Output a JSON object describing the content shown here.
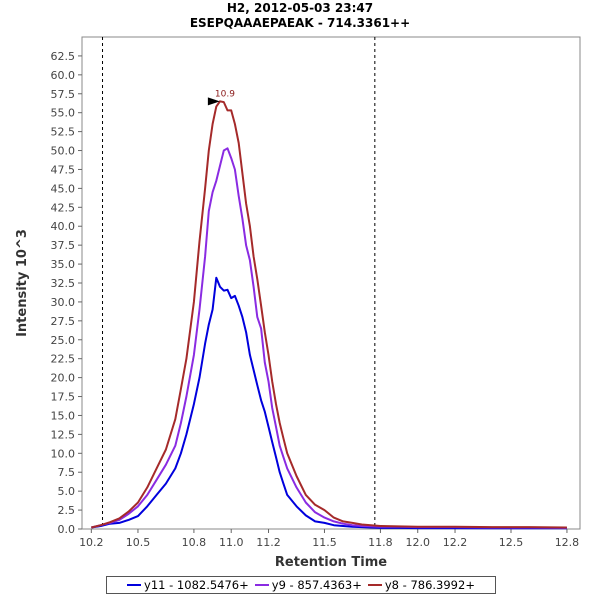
{
  "chart_data": {
    "type": "line",
    "title": "H2, 2012-05-03 23:47",
    "subtitle": "ESEPQAAAEPAEAK - 714.3361++",
    "xlabel": "Retention Time",
    "ylabel": "Intensity 10^3",
    "xlim": [
      10.2,
      12.87
    ],
    "ylim": [
      0,
      65
    ],
    "x_ticks": [
      "10.2",
      "10.5",
      "10.8",
      "11.0",
      "11.2",
      "11.5",
      "11.8",
      "12.0",
      "12.2",
      "12.5",
      "12.8"
    ],
    "y_ticks": [
      "0.0",
      "2.5",
      "5.0",
      "7.5",
      "10.0",
      "12.5",
      "15.0",
      "17.5",
      "20.0",
      "22.5",
      "25.0",
      "27.5",
      "30.0",
      "32.5",
      "35.0",
      "37.5",
      "40.0",
      "42.5",
      "45.0",
      "47.5",
      "50.0",
      "52.5",
      "55.0",
      "57.5",
      "60.0",
      "62.5"
    ],
    "integration_bounds": [
      10.31,
      11.77
    ],
    "peak_annotation": {
      "label": "10.9",
      "x": 10.95,
      "y": 56.5
    },
    "series": [
      {
        "name": "y11 - 1082.5476+",
        "color": "#0000dd",
        "x": [
          10.25,
          10.3,
          10.35,
          10.4,
          10.45,
          10.5,
          10.55,
          10.6,
          10.65,
          10.7,
          10.73,
          10.76,
          10.8,
          10.83,
          10.86,
          10.88,
          10.9,
          10.92,
          10.94,
          10.96,
          10.98,
          11.0,
          11.02,
          11.04,
          11.06,
          11.08,
          11.1,
          11.12,
          11.14,
          11.16,
          11.18,
          11.2,
          11.22,
          11.24,
          11.26,
          11.28,
          11.3,
          11.35,
          11.4,
          11.45,
          11.5,
          11.55,
          11.6,
          11.65,
          11.7,
          11.75,
          11.8,
          11.9,
          12.0,
          12.2,
          12.4,
          12.6,
          12.8
        ],
        "values": [
          0.2,
          0.4,
          0.7,
          0.8,
          1.2,
          1.7,
          3.0,
          4.5,
          6.0,
          8.0,
          10.0,
          12.5,
          16.5,
          20.0,
          24.5,
          27.0,
          29.0,
          33.2,
          32.0,
          31.5,
          31.6,
          30.5,
          30.8,
          29.5,
          28.0,
          26.0,
          23.0,
          21.0,
          19.0,
          17.0,
          15.5,
          13.5,
          11.5,
          9.5,
          7.5,
          6.0,
          4.5,
          3.0,
          1.8,
          1.0,
          0.8,
          0.5,
          0.4,
          0.3,
          0.25,
          0.2,
          0.15,
          0.15,
          0.12,
          0.12,
          0.1,
          0.1,
          0.1
        ]
      },
      {
        "name": "y9 - 857.4363+",
        "color": "#8a2be2",
        "x": [
          10.25,
          10.3,
          10.35,
          10.4,
          10.45,
          10.5,
          10.55,
          10.6,
          10.65,
          10.7,
          10.73,
          10.76,
          10.8,
          10.83,
          10.86,
          10.88,
          10.9,
          10.92,
          10.94,
          10.96,
          10.98,
          11.0,
          11.02,
          11.04,
          11.06,
          11.08,
          11.1,
          11.12,
          11.14,
          11.16,
          11.18,
          11.2,
          11.22,
          11.24,
          11.26,
          11.28,
          11.3,
          11.35,
          11.4,
          11.45,
          11.5,
          11.55,
          11.6,
          11.65,
          11.7,
          11.75,
          11.8,
          11.9,
          12.0,
          12.2,
          12.4,
          12.6,
          12.8
        ],
        "values": [
          0.2,
          0.5,
          0.8,
          1.2,
          2.0,
          3.0,
          4.5,
          6.5,
          8.5,
          11.0,
          14.0,
          17.5,
          23.0,
          29.0,
          36.0,
          42.0,
          44.5,
          46.0,
          48.0,
          50.0,
          50.3,
          49.0,
          47.5,
          44.0,
          41.0,
          37.5,
          35.5,
          32.0,
          28.0,
          26.5,
          22.0,
          19.5,
          16.0,
          13.5,
          11.0,
          9.5,
          8.0,
          5.5,
          3.5,
          2.2,
          1.5,
          1.0,
          0.7,
          0.5,
          0.4,
          0.35,
          0.3,
          0.3,
          0.25,
          0.25,
          0.2,
          0.2,
          0.15
        ]
      },
      {
        "name": "y8 - 786.3992+",
        "color": "#a52a2a",
        "x": [
          10.25,
          10.3,
          10.35,
          10.4,
          10.45,
          10.5,
          10.55,
          10.6,
          10.65,
          10.7,
          10.73,
          10.76,
          10.8,
          10.83,
          10.86,
          10.88,
          10.9,
          10.92,
          10.94,
          10.96,
          10.98,
          11.0,
          11.02,
          11.04,
          11.06,
          11.08,
          11.1,
          11.12,
          11.14,
          11.16,
          11.18,
          11.2,
          11.22,
          11.24,
          11.26,
          11.28,
          11.3,
          11.35,
          11.4,
          11.45,
          11.5,
          11.55,
          11.6,
          11.65,
          11.7,
          11.75,
          11.8,
          11.9,
          12.0,
          12.2,
          12.4,
          12.6,
          12.8
        ],
        "values": [
          0.2,
          0.5,
          0.9,
          1.4,
          2.3,
          3.5,
          5.5,
          8.0,
          10.5,
          14.5,
          18.5,
          22.5,
          30.0,
          38.0,
          45.0,
          50.0,
          53.5,
          55.8,
          56.5,
          56.4,
          55.3,
          55.3,
          53.5,
          51.0,
          47.0,
          43.0,
          40.0,
          36.0,
          33.0,
          29.5,
          26.0,
          23.0,
          19.5,
          16.5,
          14.0,
          12.0,
          10.0,
          7.0,
          4.5,
          3.2,
          2.5,
          1.5,
          1.0,
          0.8,
          0.6,
          0.5,
          0.4,
          0.35,
          0.3,
          0.3,
          0.25,
          0.25,
          0.2
        ]
      }
    ]
  }
}
